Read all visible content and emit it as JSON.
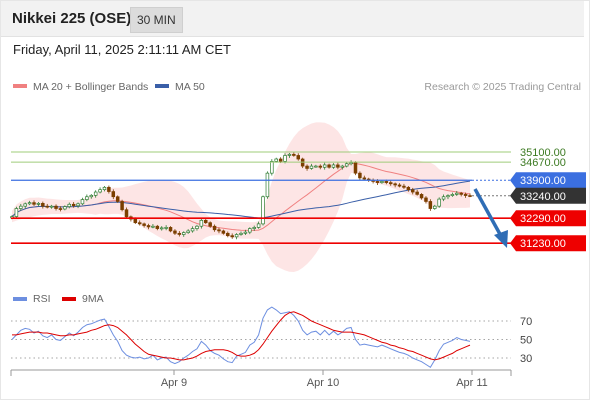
{
  "header": {
    "title": "Nikkei 225 (OSE)",
    "interval": "30 MIN"
  },
  "datetime": "Friday, April 11, 2025 2:11:11 AM CET",
  "legend": {
    "ma20": "MA 20 + Bollinger Bands",
    "ma50": "MA 50"
  },
  "credit": "Research © 2025 Trading Central",
  "colors": {
    "up": "#2e7d32",
    "down": "#7b3f00",
    "ma20": "#f08080",
    "band_fill": "#fde0e0",
    "ma50": "#3a5fa8",
    "support": "#ee0000",
    "pivot": "#3b6fe0",
    "resistance": "#9fcc7a",
    "last": "#333333",
    "rsi": "#6d8fe0",
    "rsi_ma": "#dd0000",
    "arrow": "#2f6db5"
  },
  "chart_data": [
    {
      "type": "candlestick",
      "x_labels": [
        "Apr 9",
        "Apr 10",
        "Apr 11"
      ],
      "ylim": [
        29500,
        36200
      ],
      "levels": [
        {
          "value": 35100,
          "label": "35100.00",
          "kind": "resistance"
        },
        {
          "value": 34670,
          "label": "34670.00",
          "kind": "resistance"
        },
        {
          "value": 33900,
          "label": "33900.00",
          "kind": "pivot"
        },
        {
          "value": 33240,
          "label": "33240.00",
          "kind": "last"
        },
        {
          "value": 32290,
          "label": "32290.00",
          "kind": "support"
        },
        {
          "value": 31230,
          "label": "31230.00",
          "kind": "support"
        }
      ],
      "close": [
        32360,
        32700,
        32800,
        32900,
        32950,
        32880,
        32920,
        32800,
        32760,
        32800,
        32700,
        32680,
        32780,
        32880,
        32820,
        32900,
        33080,
        33200,
        33260,
        33400,
        33500,
        33600,
        33420,
        33200,
        33000,
        32650,
        32350,
        32250,
        32100,
        32050,
        31980,
        31920,
        31950,
        31850,
        31880,
        31900,
        31750,
        31650,
        31600,
        31680,
        31750,
        31850,
        31950,
        32200,
        32100,
        31950,
        31800,
        31750,
        31650,
        31550,
        31500,
        31600,
        31650,
        31700,
        31850,
        31900,
        32050,
        33200,
        34200,
        34700,
        34800,
        34700,
        34950,
        35000,
        34950,
        34800,
        34500,
        34400,
        34500,
        34500,
        34450,
        34550,
        34450,
        34550,
        34450,
        34500,
        34600,
        34650,
        34200,
        34000,
        33950,
        33900,
        33850,
        33800,
        33850,
        33800,
        33750,
        33700,
        33650,
        33600,
        33500,
        33400,
        33300,
        33150,
        33000,
        32700,
        32800,
        33100,
        33200,
        33250,
        33300,
        33350,
        33300,
        33250,
        33240
      ]
    },
    {
      "type": "line",
      "title": "RSI",
      "series": [
        {
          "name": "RSI"
        },
        {
          "name": "9MA"
        }
      ],
      "yticks": [
        "70",
        "50",
        "30"
      ],
      "ylim": [
        15,
        85
      ],
      "rsi": [
        50,
        55,
        60,
        62,
        61,
        57,
        59,
        54,
        52,
        55,
        50,
        49,
        53,
        57,
        54,
        58,
        63,
        66,
        67,
        69,
        71,
        72,
        64,
        55,
        48,
        38,
        33,
        31,
        30,
        31,
        29,
        30,
        33,
        28,
        30,
        31,
        26,
        24,
        26,
        30,
        33,
        37,
        40,
        48,
        44,
        38,
        35,
        33,
        29,
        26,
        25,
        32,
        34,
        36,
        44,
        47,
        55,
        73,
        82,
        85,
        82,
        78,
        79,
        80,
        76,
        70,
        60,
        55,
        58,
        59,
        55,
        60,
        55,
        59,
        55,
        58,
        62,
        63,
        50,
        44,
        45,
        44,
        43,
        42,
        44,
        42,
        40,
        38,
        36,
        35,
        33,
        30,
        28,
        26,
        23,
        20,
        28,
        38,
        45,
        47,
        49,
        52,
        50,
        49,
        48
      ],
      "rsi_ma": [
        55,
        55,
        56,
        57,
        58,
        58,
        58,
        57,
        57,
        56,
        55,
        54,
        54,
        55,
        55,
        56,
        57,
        58,
        60,
        61,
        63,
        65,
        66,
        65,
        63,
        59,
        55,
        50,
        45,
        41,
        37,
        34,
        33,
        32,
        31,
        30,
        30,
        29,
        28,
        28,
        29,
        30,
        32,
        35,
        37,
        38,
        39,
        39,
        39,
        38,
        36,
        33,
        32,
        32,
        33,
        35,
        39,
        45,
        52,
        59,
        65,
        71,
        76,
        79,
        80,
        78,
        76,
        73,
        70,
        68,
        66,
        64,
        62,
        60,
        59,
        58,
        58,
        58,
        57,
        56,
        55,
        53,
        51,
        49,
        47,
        46,
        44,
        43,
        41,
        40,
        38,
        37,
        35,
        33,
        31,
        29,
        28,
        29,
        31,
        33,
        35,
        38,
        40,
        42,
        44
      ]
    }
  ]
}
